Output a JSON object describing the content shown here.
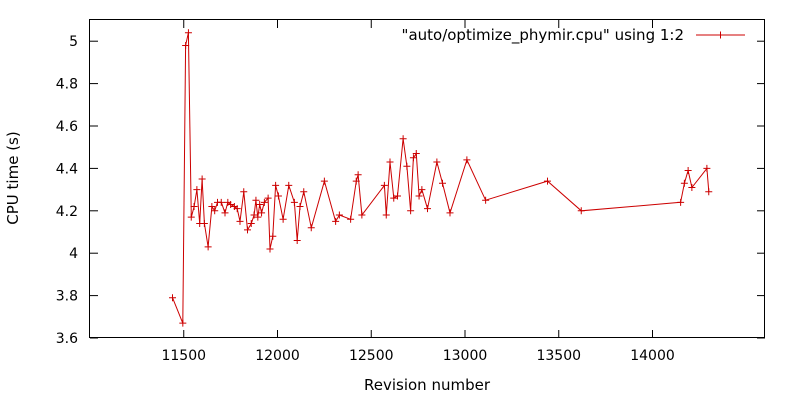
{
  "chart_data": {
    "type": "line",
    "xlabel": "Revision number",
    "ylabel": "CPU time (s)",
    "xlim": [
      11000,
      14600
    ],
    "ylim": [
      3.6,
      5.1
    ],
    "x_ticks": [
      "11500",
      "12000",
      "12500",
      "13000",
      "13500",
      "14000"
    ],
    "y_ticks": [
      "3.6",
      "3.8",
      "4",
      "4.2",
      "4.4",
      "4.6",
      "4.8",
      "5"
    ],
    "grid": false,
    "legend_position": "top-right",
    "series_color": "#cc0000",
    "series": [
      {
        "name": "\"auto/optimize_phymir.cpu\" using 1:2",
        "x": [
          11440,
          11495,
          11510,
          11525,
          11540,
          11555,
          11570,
          11585,
          11598,
          11610,
          11630,
          11650,
          11665,
          11680,
          11700,
          11720,
          11735,
          11750,
          11770,
          11785,
          11800,
          11820,
          11840,
          11860,
          11875,
          11885,
          11895,
          11905,
          11915,
          11930,
          11950,
          11960,
          11975,
          11990,
          12005,
          12030,
          12060,
          12090,
          12105,
          12120,
          12140,
          12180,
          12250,
          12310,
          12330,
          12390,
          12420,
          12430,
          12450,
          12570,
          12580,
          12600,
          12620,
          12640,
          12670,
          12690,
          12710,
          12725,
          12740,
          12755,
          12770,
          12800,
          12850,
          12880,
          12920,
          13010,
          13110,
          13440,
          13620,
          14150,
          14170,
          14190,
          14210,
          14290,
          14300
        ],
        "y": [
          3.79,
          3.67,
          4.98,
          5.04,
          4.17,
          4.22,
          4.3,
          4.14,
          4.35,
          4.14,
          4.03,
          4.22,
          4.2,
          4.24,
          4.24,
          4.19,
          4.24,
          4.23,
          4.22,
          4.21,
          4.15,
          4.29,
          4.11,
          4.14,
          4.18,
          4.25,
          4.17,
          4.23,
          4.19,
          4.24,
          4.26,
          4.02,
          4.08,
          4.32,
          4.27,
          4.16,
          4.32,
          4.24,
          4.06,
          4.22,
          4.29,
          4.12,
          4.34,
          4.15,
          4.18,
          4.16,
          4.34,
          4.37,
          4.18,
          4.32,
          4.18,
          4.43,
          4.26,
          4.27,
          4.54,
          4.41,
          4.2,
          4.45,
          4.47,
          4.27,
          4.3,
          4.21,
          4.43,
          4.33,
          4.19,
          4.44,
          4.25,
          4.34,
          4.2,
          4.24,
          4.33,
          4.39,
          4.31,
          4.4,
          4.29
        ]
      }
    ]
  }
}
